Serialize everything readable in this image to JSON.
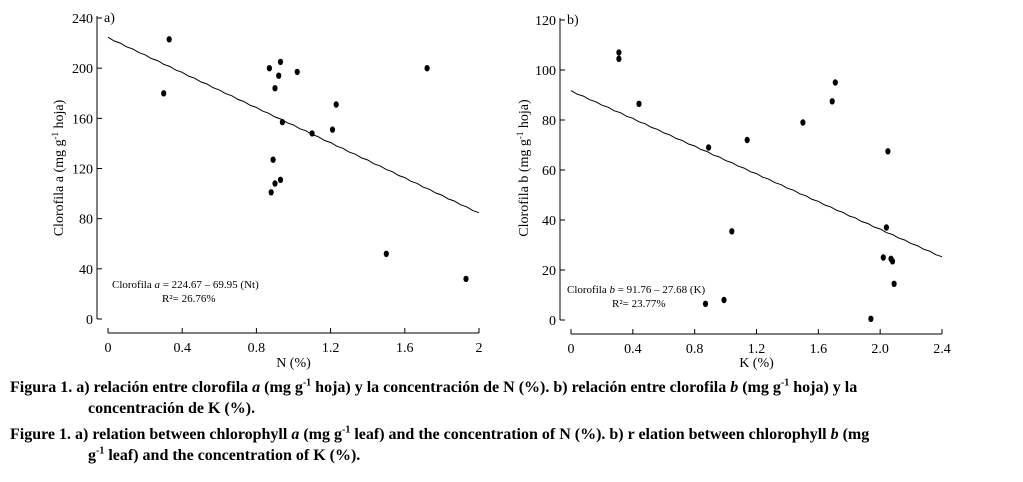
{
  "chart_data": [
    {
      "type": "scatter",
      "panel_label": "a)",
      "xlabel": "N (%)",
      "ylabel": "Clorofila a (mg g-1 hoja)",
      "ylabel_parts": [
        "Clorofila a (mg g",
        "-1",
        " hoja)"
      ],
      "xlim": [
        0,
        2
      ],
      "ylim": [
        0,
        240
      ],
      "xticks": [
        0,
        0.4,
        0.8,
        1.2,
        1.6,
        2
      ],
      "xtick_labels": [
        "0",
        "0.4",
        "0.8",
        "1.2",
        "1.6",
        "2"
      ],
      "yticks": [
        0,
        40,
        80,
        120,
        160,
        200,
        240
      ],
      "ytick_labels": [
        "0",
        "40",
        "80",
        "120",
        "160",
        "200",
        "240"
      ],
      "points": [
        [
          0.33,
          223
        ],
        [
          0.3,
          180
        ],
        [
          0.87,
          200
        ],
        [
          0.93,
          205
        ],
        [
          0.92,
          194
        ],
        [
          0.9,
          184
        ],
        [
          1.02,
          197
        ],
        [
          0.94,
          157
        ],
        [
          1.1,
          148
        ],
        [
          1.23,
          171
        ],
        [
          1.21,
          151
        ],
        [
          0.89,
          127
        ],
        [
          0.9,
          108
        ],
        [
          0.93,
          111
        ],
        [
          0.88,
          101
        ],
        [
          1.72,
          200
        ],
        [
          1.5,
          52
        ],
        [
          1.93,
          32
        ]
      ],
      "regression": {
        "intercept": 224.67,
        "slope": -69.95,
        "x_range": [
          0,
          2
        ]
      },
      "equation": {
        "prefix": "Clorofila ",
        "var": "a",
        "rest": " = 224.67 – 69.95 (Nt)"
      },
      "r2": "R²= 26.76%"
    },
    {
      "type": "scatter",
      "panel_label": "b)",
      "xlabel": "K (%)",
      "ylabel": "Clorofila b (mg g-1 hoja)",
      "ylabel_parts": [
        "Clorofila b (mg g",
        "-1",
        " hoja)"
      ],
      "xlim": [
        0,
        2.4
      ],
      "ylim": [
        0,
        120
      ],
      "xticks": [
        0,
        0.4,
        0.8,
        1.2,
        1.6,
        2.0,
        2.4
      ],
      "xtick_labels": [
        "0",
        "0.4",
        "0.8",
        "1.2",
        "1.6",
        "2.0",
        "2.4"
      ],
      "yticks": [
        0,
        20,
        40,
        60,
        80,
        100,
        120
      ],
      "ytick_labels": [
        "0",
        "20",
        "40",
        "60",
        "80",
        "100",
        "120"
      ],
      "points": [
        [
          0.31,
          107
        ],
        [
          0.31,
          104.5
        ],
        [
          0.44,
          86.5
        ],
        [
          0.89,
          69
        ],
        [
          1.14,
          72
        ],
        [
          1.04,
          35.5
        ],
        [
          0.87,
          6.5
        ],
        [
          0.99,
          8
        ],
        [
          1.5,
          79
        ],
        [
          1.71,
          95
        ],
        [
          1.69,
          87.5
        ],
        [
          2.05,
          67.5
        ],
        [
          2.04,
          37
        ],
        [
          2.02,
          25
        ],
        [
          2.07,
          24.5
        ],
        [
          2.08,
          23.5
        ],
        [
          2.09,
          14.5
        ],
        [
          1.94,
          0.5
        ]
      ],
      "regression": {
        "intercept": 91.76,
        "slope": -27.68,
        "x_range": [
          0,
          2.4
        ]
      },
      "equation": {
        "prefix": "Clorofila ",
        "var": "b",
        "rest": " = 91.76 – 27.68 (K)"
      },
      "r2": "R²= 23.77%"
    }
  ],
  "captions": {
    "es": {
      "l1_a": "Figura 1. a) relación entre clorofila ",
      "l1_var": "a",
      "l1_b": " (mg g",
      "l1_sup": "-1",
      "l1_c": " hoja) y la concentración de N (%). b) relación entre clorofila ",
      "l1_var2": "b",
      "l1_d": " (mg g",
      "l1_sup2": "-1",
      "l1_e": " hoja) y la",
      "l2": "concentración de K (%)."
    },
    "en": {
      "l1_a": "Figure 1. a) relation between chlorophyll ",
      "l1_var": "a",
      "l1_b": " (mg g",
      "l1_sup": "-1",
      "l1_c": " leaf) and the concentration of N (%). b) r elation between chlorophyll ",
      "l1_var2": "b",
      "l1_d": " (mg",
      "l2_a": "g",
      "l2_sup": "-1",
      "l2_b": " leaf) and the concentration of K (%)."
    }
  }
}
